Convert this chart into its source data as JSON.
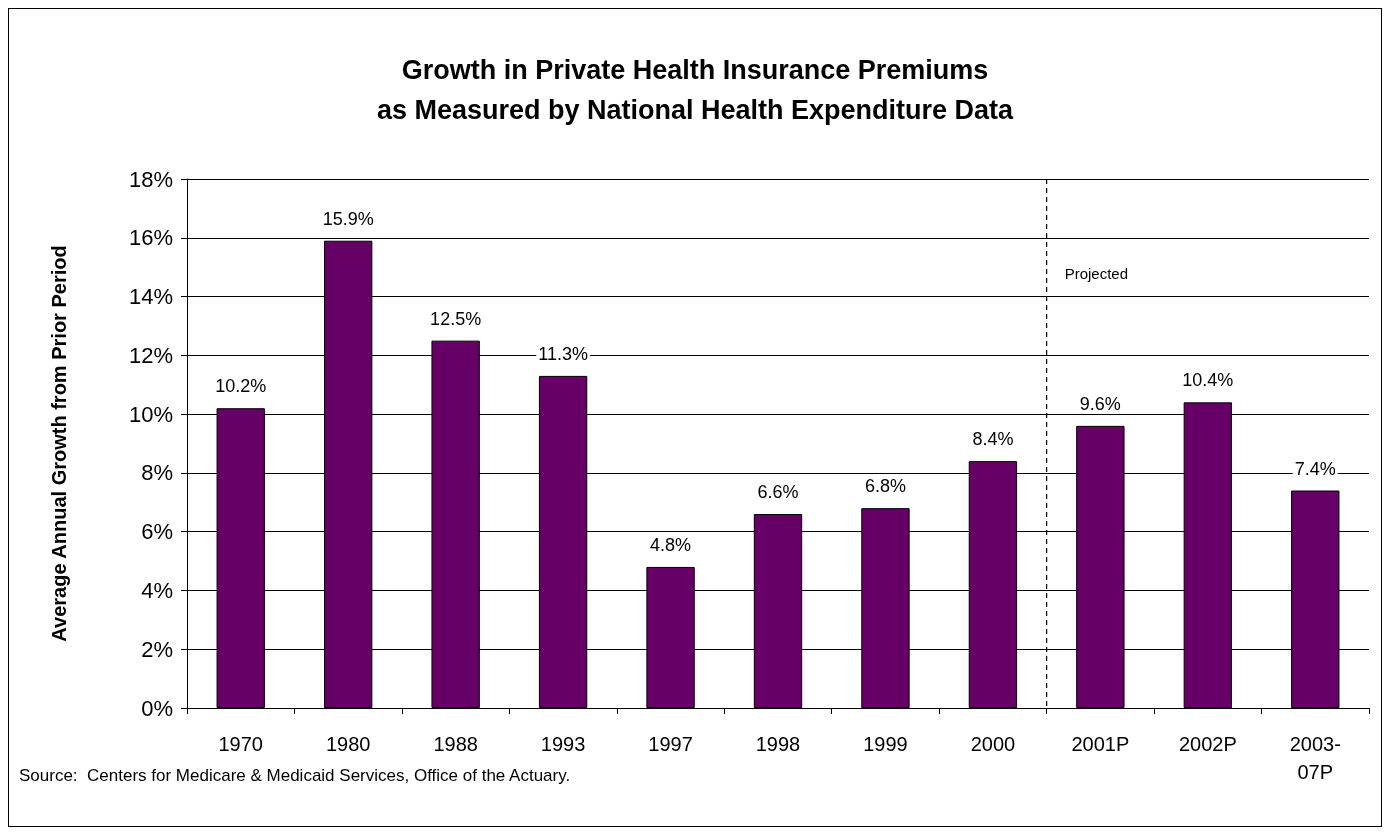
{
  "chart_data": {
    "type": "bar",
    "title": "Growth in Private Health Insurance Premiums\nas Measured by National Health Expenditure Data",
    "ylabel": "Average Annual Growth from Prior Period",
    "categories": [
      "1970",
      "1980",
      "1988",
      "1993",
      "1997",
      "1998",
      "1999",
      "2000",
      "2001P",
      "2002P",
      "2003-07P"
    ],
    "values": [
      10.2,
      15.9,
      12.5,
      11.3,
      4.8,
      6.6,
      6.8,
      8.4,
      9.6,
      10.4,
      7.4
    ],
    "color": "#660066",
    "ylim": [
      0,
      18
    ],
    "yticks": [
      {
        "value": 0,
        "label": "0%"
      },
      {
        "value": 2,
        "label": "2%"
      },
      {
        "value": 4,
        "label": "4%"
      },
      {
        "value": 6,
        "label": "6%"
      },
      {
        "value": 8,
        "label": "8%"
      },
      {
        "value": 10,
        "label": "10%"
      },
      {
        "value": 12,
        "label": "12%"
      },
      {
        "value": 14,
        "label": "14%"
      },
      {
        "value": 16,
        "label": "16%"
      },
      {
        "value": 18,
        "label": "18%"
      }
    ],
    "value_labels": [
      "10.2%",
      "15.9%",
      "12.5%",
      "11.3%",
      "4.8%",
      "6.6%",
      "6.8%",
      "8.4%",
      "9.6%",
      "10.4%",
      "7.4%"
    ],
    "ref_lines": [
      {
        "axis": "x",
        "value": "2001P",
        "label": "Projected",
        "line_style": "dashed",
        "color": "#000000"
      }
    ],
    "annotations": [
      "Source:  Centers for Medicare & Medicaid Services, Office of the Actuary."
    ],
    "grid": "y"
  }
}
